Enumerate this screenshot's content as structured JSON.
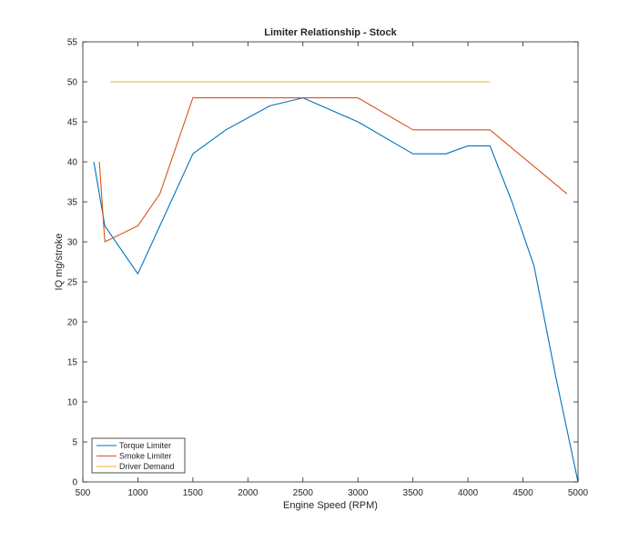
{
  "chart_data": {
    "type": "line",
    "title": "Limiter Relationship - Stock",
    "xlabel": "Engine Speed (RPM)",
    "ylabel": "IQ mg/stroke",
    "xlim": [
      500,
      5000
    ],
    "ylim": [
      0,
      55
    ],
    "xticks": [
      500,
      1000,
      1500,
      2000,
      2500,
      3000,
      3500,
      4000,
      4500,
      5000
    ],
    "yticks": [
      0,
      5,
      10,
      15,
      20,
      25,
      30,
      35,
      40,
      45,
      50,
      55
    ],
    "grid": false,
    "legend_position": "bottom-left",
    "series": [
      {
        "name": "Torque Limiter",
        "color": "#0072BD",
        "x": [
          600,
          700,
          1000,
          1500,
          1800,
          2200,
          2500,
          3000,
          3500,
          3800,
          4000,
          4200,
          4400,
          4600,
          4800,
          5000
        ],
        "y": [
          40,
          32,
          26,
          41,
          44,
          47,
          48,
          45,
          41,
          41,
          42,
          42,
          35,
          27,
          13,
          0
        ]
      },
      {
        "name": "Smoke Limiter",
        "color": "#D95319",
        "x": [
          650,
          700,
          1000,
          1200,
          1500,
          3000,
          3500,
          4200,
          4900
        ],
        "y": [
          40,
          30,
          32,
          36,
          48,
          48,
          44,
          44,
          36
        ]
      },
      {
        "name": "Driver Demand",
        "color": "#EDB120",
        "x": [
          750,
          4200
        ],
        "y": [
          50,
          50
        ]
      }
    ]
  }
}
